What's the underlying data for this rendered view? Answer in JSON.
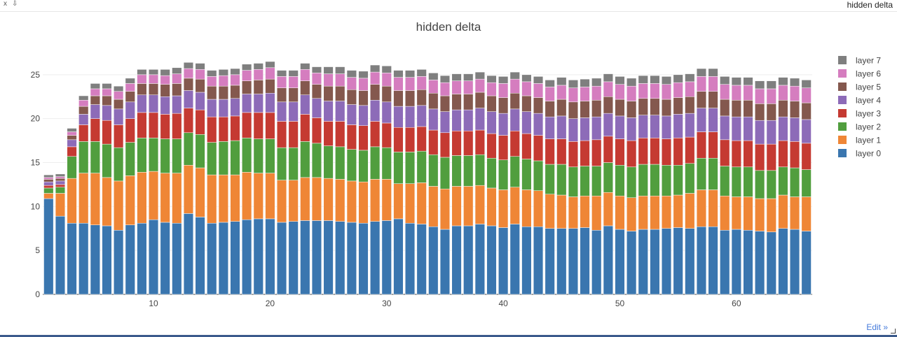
{
  "window": {
    "close_label": "x",
    "pin_label": "⇩",
    "tab_title": "hidden delta",
    "edit_label": "Edit »"
  },
  "colors": {
    "layer0": "#3a76af",
    "layer1": "#ef8636",
    "layer2": "#519e3e",
    "layer3": "#c53a32",
    "layer4": "#8d6bb8",
    "layer5": "#84584e",
    "layer6": "#d57dbf",
    "layer7": "#7f7f7f"
  },
  "chart_data": {
    "type": "bar",
    "barmode": "stack",
    "title": "hidden delta",
    "xlabel": "",
    "ylabel": "",
    "xlim": [
      0.5,
      66.5
    ],
    "ylim": [
      0,
      26.5
    ],
    "xticks": [
      10,
      20,
      30,
      40,
      50,
      60
    ],
    "yticks": [
      0,
      5,
      10,
      15,
      20,
      25
    ],
    "grid": true,
    "legend_position": "right",
    "x": [
      1,
      2,
      3,
      4,
      5,
      6,
      7,
      8,
      9,
      10,
      11,
      12,
      13,
      14,
      15,
      16,
      17,
      18,
      19,
      20,
      21,
      22,
      23,
      24,
      25,
      26,
      27,
      28,
      29,
      30,
      31,
      32,
      33,
      34,
      35,
      36,
      37,
      38,
      39,
      40,
      41,
      42,
      43,
      44,
      45,
      46,
      47,
      48,
      49,
      50,
      51,
      52,
      53,
      54,
      55,
      56,
      57,
      58,
      59,
      60,
      61,
      62,
      63,
      64,
      65,
      66
    ],
    "series": [
      {
        "name": "layer 0",
        "color_key": "layer0",
        "values": [
          10.9,
          8.9,
          8.1,
          8.1,
          7.9,
          7.8,
          7.3,
          7.9,
          8.1,
          8.5,
          8.2,
          8.1,
          9.2,
          8.8,
          8.1,
          8.2,
          8.3,
          8.5,
          8.6,
          8.6,
          8.2,
          8.3,
          8.4,
          8.4,
          8.4,
          8.3,
          8.2,
          8.1,
          8.3,
          8.4,
          8.6,
          8.1,
          8.0,
          7.7,
          7.4,
          7.8,
          7.8,
          8.0,
          7.8,
          7.6,
          8.0,
          7.7,
          7.7,
          7.5,
          7.5,
          7.5,
          7.6,
          7.3,
          7.8,
          7.4,
          7.2,
          7.4,
          7.4,
          7.5,
          7.6,
          7.5,
          7.7,
          7.7,
          7.3,
          7.4,
          7.3,
          7.2,
          7.1,
          7.5,
          7.4,
          7.2
        ]
      },
      {
        "name": "layer 1",
        "color_key": "layer1",
        "values": [
          0.6,
          2.6,
          5.1,
          5.7,
          5.9,
          5.5,
          5.6,
          5.6,
          5.8,
          5.5,
          5.6,
          5.7,
          5.5,
          5.6,
          5.5,
          5.4,
          5.3,
          5.4,
          5.2,
          5.2,
          4.8,
          4.7,
          4.9,
          4.9,
          4.8,
          4.8,
          4.7,
          4.7,
          4.8,
          4.7,
          4.0,
          4.5,
          4.7,
          4.6,
          4.6,
          4.5,
          4.5,
          4.4,
          4.3,
          4.3,
          4.2,
          4.2,
          4.1,
          3.9,
          3.8,
          3.6,
          3.6,
          3.9,
          3.8,
          3.8,
          3.8,
          3.8,
          3.8,
          3.7,
          3.7,
          4.0,
          4.2,
          4.2,
          3.9,
          3.7,
          3.8,
          3.7,
          3.8,
          3.8,
          3.7,
          3.9
        ]
      },
      {
        "name": "layer 2",
        "color_key": "layer2",
        "values": [
          0.6,
          0.7,
          2.5,
          3.6,
          3.6,
          3.8,
          3.8,
          3.8,
          3.9,
          3.8,
          3.9,
          3.9,
          3.7,
          3.8,
          3.7,
          3.8,
          3.9,
          3.9,
          3.9,
          3.9,
          3.7,
          3.7,
          4.1,
          3.9,
          3.7,
          3.7,
          3.6,
          3.6,
          3.7,
          3.6,
          3.6,
          3.6,
          3.6,
          3.6,
          3.6,
          3.5,
          3.5,
          3.5,
          3.4,
          3.4,
          3.5,
          3.5,
          3.4,
          3.4,
          3.5,
          3.4,
          3.4,
          3.4,
          3.4,
          3.5,
          3.5,
          3.6,
          3.6,
          3.5,
          3.4,
          3.4,
          3.6,
          3.6,
          3.4,
          3.4,
          3.4,
          3.2,
          3.2,
          3.2,
          3.3,
          3.1
        ]
      },
      {
        "name": "layer 3",
        "color_key": "layer3",
        "values": [
          0.3,
          0.3,
          1.1,
          1.9,
          2.6,
          2.7,
          2.6,
          2.7,
          2.9,
          2.9,
          2.8,
          2.9,
          2.8,
          2.8,
          2.9,
          2.8,
          2.8,
          2.9,
          3.0,
          3.0,
          3.0,
          3.0,
          3.1,
          2.9,
          2.8,
          2.9,
          2.8,
          2.8,
          2.9,
          2.8,
          2.8,
          2.8,
          2.8,
          2.8,
          2.8,
          2.8,
          2.8,
          2.8,
          2.8,
          2.8,
          2.9,
          2.9,
          2.9,
          2.9,
          2.9,
          2.9,
          2.9,
          3.0,
          3.0,
          3.0,
          3.0,
          3.0,
          3.0,
          3.0,
          3.1,
          3.0,
          3.0,
          3.0,
          3.0,
          3.0,
          3.0,
          3.0,
          3.0,
          3.0,
          3.0,
          3.0
        ]
      },
      {
        "name": "layer 4",
        "color_key": "layer4",
        "values": [
          0.4,
          0.4,
          0.8,
          1.2,
          1.6,
          1.7,
          1.8,
          1.9,
          2.0,
          2.0,
          2.0,
          2.0,
          2.0,
          2.0,
          2.0,
          2.0,
          2.0,
          2.1,
          2.1,
          2.2,
          2.2,
          2.2,
          2.2,
          2.2,
          2.3,
          2.3,
          2.3,
          2.3,
          2.4,
          2.4,
          2.4,
          2.4,
          2.4,
          2.4,
          2.4,
          2.4,
          2.4,
          2.5,
          2.5,
          2.5,
          2.5,
          2.5,
          2.5,
          2.5,
          2.6,
          2.6,
          2.6,
          2.6,
          2.6,
          2.6,
          2.6,
          2.6,
          2.6,
          2.6,
          2.7,
          2.7,
          2.7,
          2.7,
          2.7,
          2.7,
          2.7,
          2.7,
          2.7,
          2.7,
          2.7,
          2.7
        ]
      },
      {
        "name": "layer 5",
        "color_key": "layer5",
        "values": [
          0.3,
          0.3,
          0.5,
          0.9,
          1.0,
          1.1,
          1.1,
          1.2,
          1.3,
          1.3,
          1.4,
          1.4,
          1.4,
          1.5,
          1.5,
          1.5,
          1.5,
          1.5,
          1.6,
          1.6,
          1.6,
          1.6,
          1.6,
          1.6,
          1.7,
          1.7,
          1.7,
          1.7,
          1.8,
          1.8,
          1.8,
          1.8,
          1.8,
          1.8,
          1.8,
          1.8,
          1.8,
          1.8,
          1.8,
          1.8,
          1.8,
          1.8,
          1.8,
          1.8,
          1.9,
          1.9,
          1.9,
          1.9,
          1.9,
          1.9,
          1.9,
          1.9,
          1.9,
          1.9,
          1.9,
          1.9,
          1.9,
          1.9,
          1.9,
          1.9,
          1.9,
          1.9,
          1.9,
          1.9,
          1.9,
          1.9
        ]
      },
      {
        "name": "layer 6",
        "color_key": "layer6",
        "values": [
          0.2,
          0.2,
          0.4,
          0.7,
          0.8,
          0.8,
          0.9,
          0.9,
          1.0,
          1.0,
          1.0,
          1.1,
          1.1,
          1.1,
          1.1,
          1.2,
          1.2,
          1.2,
          1.2,
          1.3,
          1.3,
          1.3,
          1.3,
          1.3,
          1.4,
          1.4,
          1.4,
          1.4,
          1.4,
          1.5,
          1.5,
          1.5,
          1.5,
          1.5,
          1.5,
          1.5,
          1.5,
          1.5,
          1.5,
          1.6,
          1.6,
          1.6,
          1.6,
          1.6,
          1.6,
          1.6,
          1.6,
          1.6,
          1.7,
          1.7,
          1.7,
          1.7,
          1.7,
          1.7,
          1.7,
          1.7,
          1.7,
          1.7,
          1.7,
          1.7,
          1.7,
          1.7,
          1.7,
          1.7,
          1.7,
          1.7
        ]
      },
      {
        "name": "layer 7",
        "color_key": "layer7",
        "values": [
          0.3,
          0.3,
          0.4,
          0.5,
          0.6,
          0.6,
          0.6,
          0.6,
          0.6,
          0.6,
          0.7,
          0.7,
          0.7,
          0.7,
          0.7,
          0.7,
          0.7,
          0.7,
          0.7,
          0.7,
          0.7,
          0.7,
          0.7,
          0.7,
          0.8,
          0.8,
          0.8,
          0.8,
          0.8,
          0.8,
          0.8,
          0.8,
          0.8,
          0.8,
          0.8,
          0.8,
          0.8,
          0.8,
          0.8,
          0.8,
          0.8,
          0.8,
          0.8,
          0.8,
          0.9,
          0.9,
          0.9,
          0.9,
          0.9,
          0.9,
          0.9,
          0.9,
          0.9,
          0.9,
          0.9,
          0.9,
          0.9,
          0.9,
          0.9,
          0.9,
          0.9,
          0.9,
          0.9,
          0.9,
          0.9,
          0.9
        ]
      }
    ]
  }
}
